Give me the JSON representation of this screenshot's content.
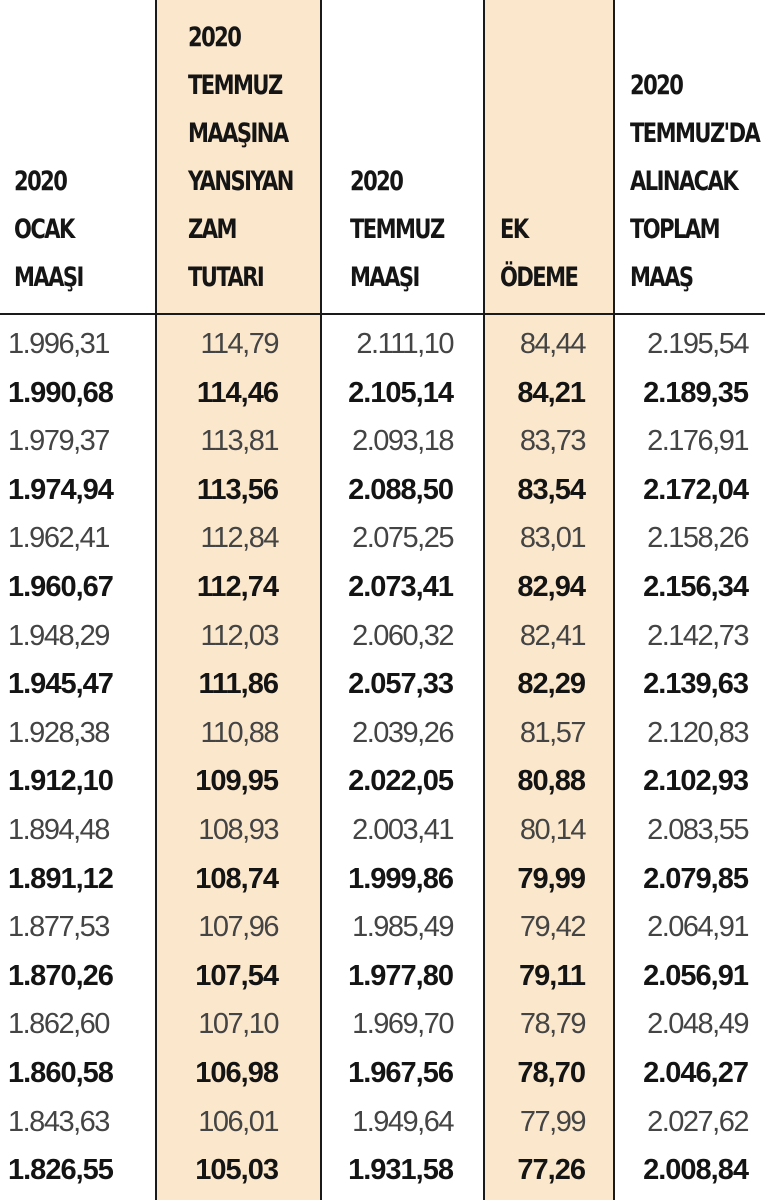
{
  "headers": [
    [
      "2020",
      "OCAK",
      "MAAŞI"
    ],
    [
      "2020",
      "TEMMUZ",
      "MAAŞINA",
      "YANSIYAN",
      "ZAM",
      "TUTARI"
    ],
    [
      "2020",
      "TEMMUZ",
      "MAAŞI"
    ],
    [
      "EK",
      "ÖDEME"
    ],
    [
      "2020",
      "TEMMUZ'DA",
      "ALINACAK",
      "TOPLAM",
      "MAAŞ"
    ]
  ],
  "highlight_color": "#fbe7cc",
  "rows": [
    {
      "bold": false,
      "cells": [
        "1.996,31",
        "114,79",
        "2.111,10",
        "84,44",
        "2.195,54"
      ]
    },
    {
      "bold": true,
      "cells": [
        "1.990,68",
        "114,46",
        "2.105,14",
        "84,21",
        "2.189,35"
      ]
    },
    {
      "bold": false,
      "cells": [
        "1.979,37",
        "113,81",
        "2.093,18",
        "83,73",
        "2.176,91"
      ]
    },
    {
      "bold": true,
      "cells": [
        "1.974,94",
        "113,56",
        "2.088,50",
        "83,54",
        "2.172,04"
      ]
    },
    {
      "bold": false,
      "cells": [
        "1.962,41",
        "112,84",
        "2.075,25",
        "83,01",
        "2.158,26"
      ]
    },
    {
      "bold": true,
      "cells": [
        "1.960,67",
        "112,74",
        "2.073,41",
        "82,94",
        "2.156,34"
      ]
    },
    {
      "bold": false,
      "cells": [
        "1.948,29",
        "112,03",
        "2.060,32",
        "82,41",
        "2.142,73"
      ]
    },
    {
      "bold": true,
      "cells": [
        "1.945,47",
        "111,86",
        "2.057,33",
        "82,29",
        "2.139,63"
      ]
    },
    {
      "bold": false,
      "cells": [
        "1.928,38",
        "110,88",
        "2.039,26",
        "81,57",
        "2.120,83"
      ]
    },
    {
      "bold": true,
      "cells": [
        "1.912,10",
        "109,95",
        "2.022,05",
        "80,88",
        "2.102,93"
      ]
    },
    {
      "bold": false,
      "cells": [
        "1.894,48",
        "108,93",
        "2.003,41",
        "80,14",
        "2.083,55"
      ]
    },
    {
      "bold": true,
      "cells": [
        "1.891,12",
        "108,74",
        "1.999,86",
        "79,99",
        "2.079,85"
      ]
    },
    {
      "bold": false,
      "cells": [
        "1.877,53",
        "107,96",
        "1.985,49",
        "79,42",
        "2.064,91"
      ]
    },
    {
      "bold": true,
      "cells": [
        "1.870,26",
        "107,54",
        "1.977,80",
        "79,11",
        "2.056,91"
      ]
    },
    {
      "bold": false,
      "cells": [
        "1.862,60",
        "107,10",
        "1.969,70",
        "78,79",
        "2.048,49"
      ]
    },
    {
      "bold": true,
      "cells": [
        "1.860,58",
        "106,98",
        "1.967,56",
        "78,70",
        "2.046,27"
      ]
    },
    {
      "bold": false,
      "cells": [
        "1.843,63",
        "106,01",
        "1.949,64",
        "77,99",
        "2.027,62"
      ]
    },
    {
      "bold": true,
      "cells": [
        "1.826,55",
        "105,03",
        "1.931,58",
        "77,26",
        "2.008,84"
      ]
    }
  ]
}
